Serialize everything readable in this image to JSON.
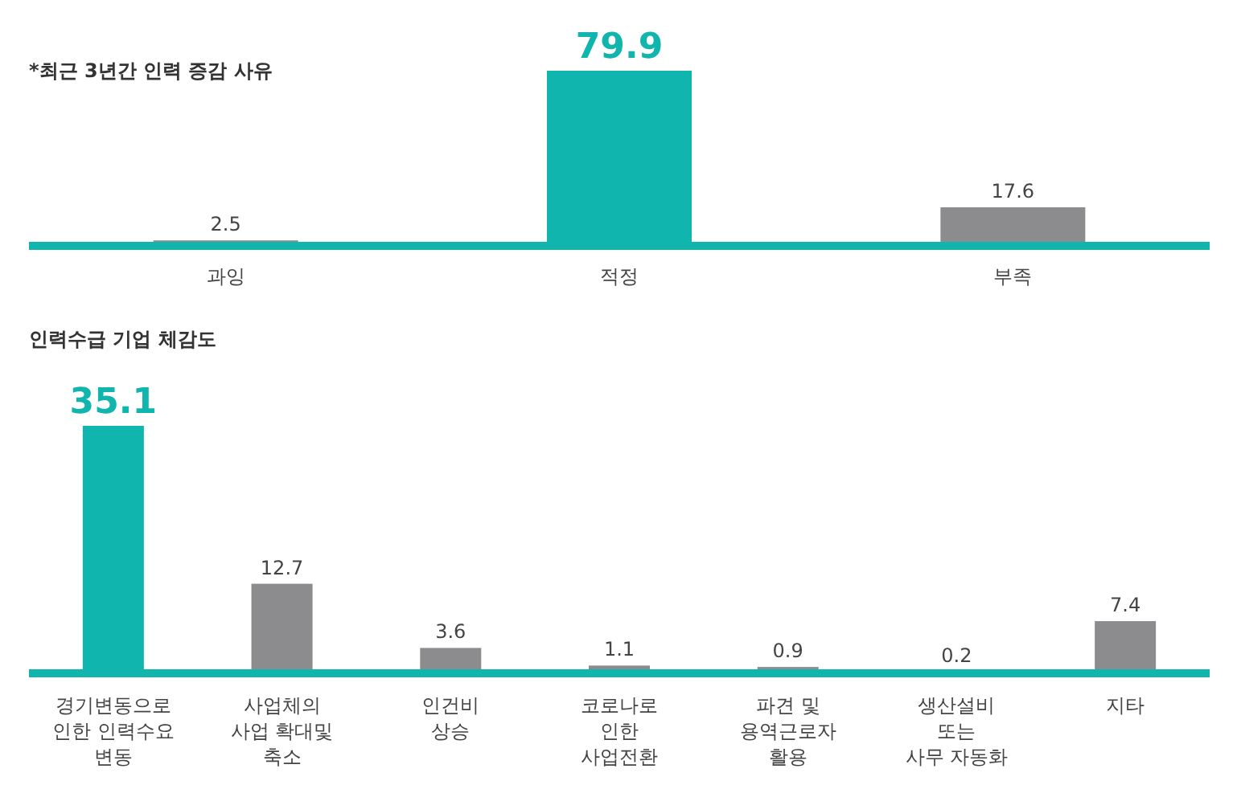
{
  "chart_data": [
    {
      "type": "bar",
      "title": "*최근 3년간 인력 증감 사유",
      "categories": [
        "과잉",
        "적정",
        "부족"
      ],
      "values": [
        2.5,
        79.9,
        17.6
      ],
      "colors": [
        "#8c8c8e",
        "#10b5ad",
        "#8c8c8e"
      ],
      "data_labels": true
    },
    {
      "type": "bar",
      "title": "인력수급 기업 체감도",
      "categories": [
        "경기변동으로\n인한 인력수요\n변동",
        "사업체의\n사업 확대및\n축소",
        "인건비\n상승",
        "코로나로\n인한\n사업전환",
        "파견 및\n용역근로자\n활용",
        "생산설비\n또는\n사무 자동화",
        "지타"
      ],
      "values": [
        35.1,
        12.7,
        3.6,
        1.1,
        0.9,
        0.2,
        7.4
      ],
      "colors": [
        "#10b5ad",
        "#8c8c8e",
        "#8c8c8e",
        "#8c8c8e",
        "#8c8c8e",
        "#8c8c8e",
        "#8c8c8e"
      ],
      "data_labels": true
    }
  ]
}
